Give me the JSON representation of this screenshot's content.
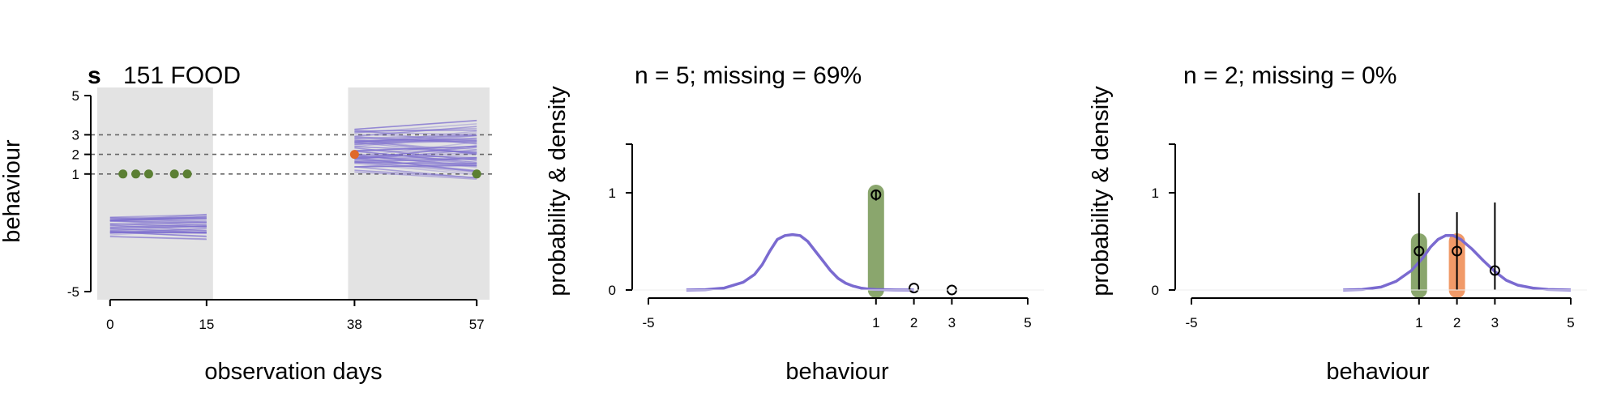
{
  "colors": {
    "panel_background": "#e3e3e3",
    "draws": "#7e6fcf",
    "density": "#7a6ad0",
    "observed_green": "#5b7f33",
    "observed_orange": "#e0692a",
    "bar_green": "#8aa66d",
    "bar_orange": "#f19a68",
    "reference_line": "#666666"
  },
  "chart_data": [
    {
      "type": "line",
      "panel_letter": "s",
      "title": "151 FOOD",
      "xlabel": "observation days",
      "ylabel": "behaviour",
      "xlim": [
        -3,
        60
      ],
      "ylim": [
        -5,
        5
      ],
      "x_ticks": [
        0,
        15,
        38,
        57
      ],
      "y_ticks": [
        -5,
        1,
        2,
        3,
        5
      ],
      "reference_lines_y": [
        1,
        2,
        3
      ],
      "observation_windows": [
        [
          -2,
          16
        ],
        [
          37,
          59
        ]
      ],
      "predictive_draws": [
        {
          "x_range": [
            0,
            15
          ],
          "y_center": -1.7,
          "y_spread": 1.0,
          "count": 40
        },
        {
          "x_range": [
            38,
            57
          ],
          "y_center": 2.2,
          "y_spread": 2.2,
          "count": 60
        }
      ],
      "observed": [
        {
          "x": 2,
          "y": 1,
          "color": "green"
        },
        {
          "x": 4,
          "y": 1,
          "color": "green"
        },
        {
          "x": 6,
          "y": 1,
          "color": "green"
        },
        {
          "x": 10,
          "y": 1,
          "color": "green"
        },
        {
          "x": 12,
          "y": 1,
          "color": "green"
        },
        {
          "x": 38,
          "y": 2,
          "color": "orange"
        },
        {
          "x": 57,
          "y": 1,
          "color": "green"
        }
      ]
    },
    {
      "type": "line",
      "title": "n = 5; missing = 69%",
      "xlabel": "behaviour",
      "ylabel": "probability & density",
      "xlim": [
        -5,
        5
      ],
      "ylim": [
        0,
        1.5
      ],
      "x_ticks": [
        -5,
        1,
        2,
        3,
        5
      ],
      "y_ticks": [
        0,
        1
      ],
      "density": {
        "x": [
          -4,
          -3.5,
          -3,
          -2.5,
          -2.2,
          -2,
          -1.8,
          -1.6,
          -1.4,
          -1.2,
          -1,
          -0.8,
          -0.6,
          -0.4,
          -0.2,
          0,
          0.2,
          0.4,
          0.6,
          0.8,
          1,
          1.5,
          2
        ],
        "y": [
          0,
          0.003,
          0.02,
          0.08,
          0.16,
          0.26,
          0.4,
          0.52,
          0.56,
          0.57,
          0.56,
          0.5,
          0.4,
          0.3,
          0.2,
          0.12,
          0.07,
          0.04,
          0.02,
          0.01,
          0.005,
          0.001,
          0
        ]
      },
      "bars": [
        {
          "x": 1,
          "y": 1.0,
          "color": "green"
        }
      ],
      "points": [
        {
          "x": 1,
          "y": 0.98,
          "ci": [
            0.92,
            1.02
          ]
        },
        {
          "x": 2,
          "y": 0.02
        },
        {
          "x": 3,
          "y": 0.0
        }
      ]
    },
    {
      "type": "line",
      "title": "n = 2; missing = 0%",
      "xlabel": "behaviour",
      "ylabel": "probability & density",
      "xlim": [
        -5,
        5
      ],
      "ylim": [
        0,
        1.5
      ],
      "x_ticks": [
        -5,
        1,
        2,
        3,
        5
      ],
      "y_ticks": [
        0,
        1
      ],
      "density": {
        "x": [
          -1,
          -0.5,
          0,
          0.4,
          0.8,
          1.1,
          1.3,
          1.5,
          1.7,
          1.9,
          2.1,
          2.4,
          2.7,
          3,
          3.3,
          3.6,
          4,
          4.4,
          5
        ],
        "y": [
          0,
          0.005,
          0.03,
          0.09,
          0.2,
          0.33,
          0.44,
          0.52,
          0.56,
          0.56,
          0.52,
          0.42,
          0.3,
          0.19,
          0.1,
          0.05,
          0.02,
          0.005,
          0
        ]
      },
      "bars": [
        {
          "x": 1,
          "y": 0.5,
          "color": "green"
        },
        {
          "x": 2,
          "y": 0.5,
          "color": "orange"
        }
      ],
      "points": [
        {
          "x": 1,
          "y": 0.4,
          "ci": [
            0,
            1.0
          ]
        },
        {
          "x": 2,
          "y": 0.4,
          "ci": [
            0,
            0.8
          ]
        },
        {
          "x": 3,
          "y": 0.2,
          "ci": [
            0,
            0.9
          ]
        }
      ]
    }
  ]
}
